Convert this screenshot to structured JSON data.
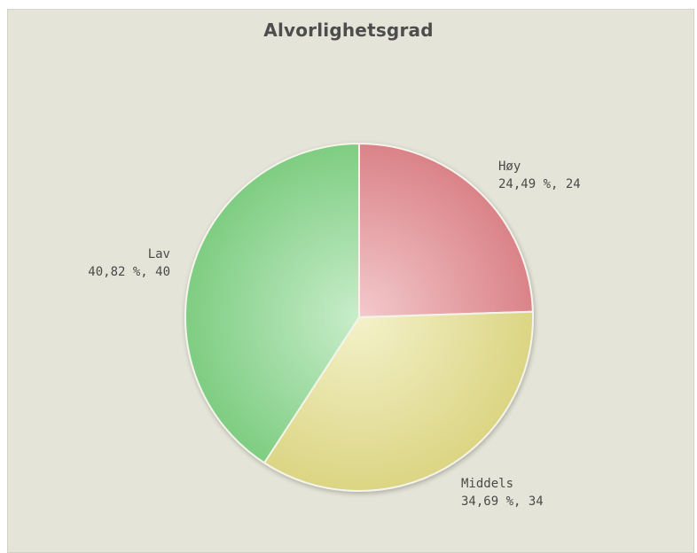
{
  "chart_data": {
    "type": "pie",
    "title": "Alvorlighetsgrad",
    "slices": [
      {
        "label": "Høy",
        "value": 24,
        "percent_text": "24,49 %, 24",
        "color": "#e58a8f"
      },
      {
        "label": "Middels",
        "value": 34,
        "percent_text": "34,69 %, 34",
        "color": "#e6e08a"
      },
      {
        "label": "Lav",
        "value": 40,
        "percent_text": "40,82 %, 40",
        "color": "#85d889"
      }
    ],
    "start_angle_deg": 0,
    "direction": "clockwise",
    "legend": "none"
  }
}
